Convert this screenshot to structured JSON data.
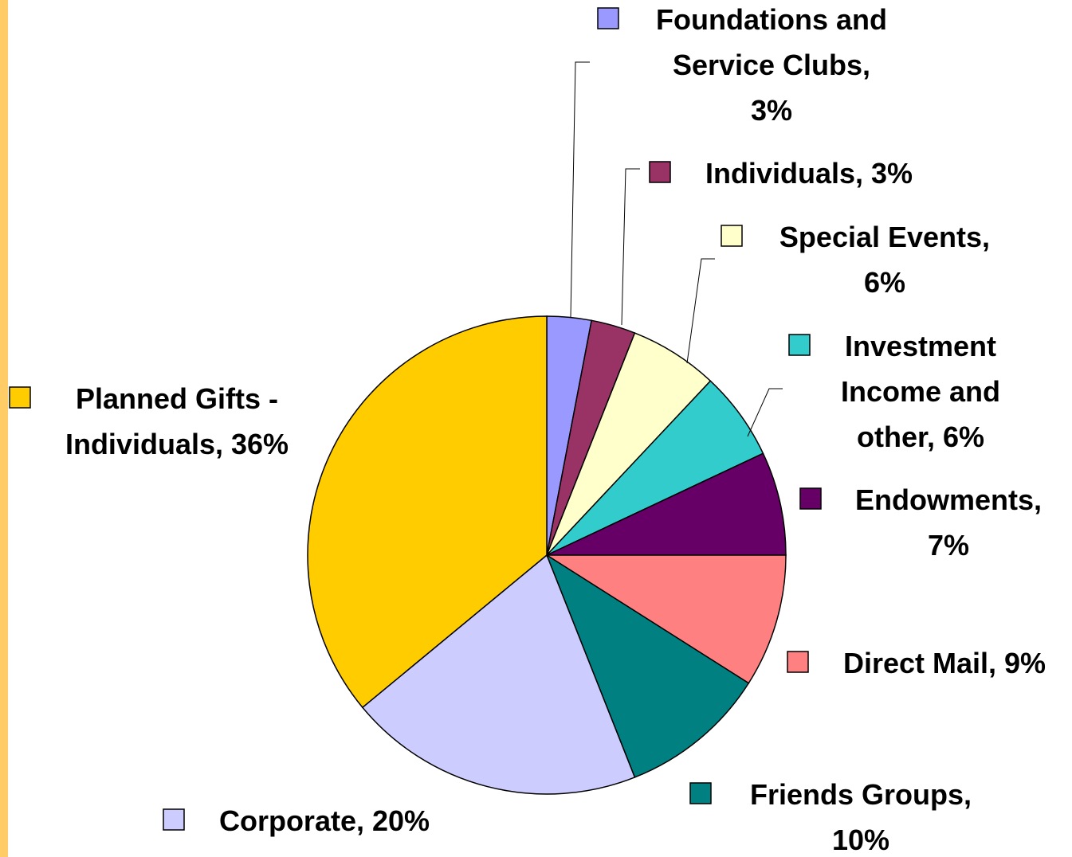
{
  "chart_data": {
    "type": "pie",
    "categories": [
      "Foundations and Service Clubs",
      "Individuals",
      "Special Events",
      "Investment Income and other",
      "Endowments",
      "Direct Mail",
      "Friends Groups",
      "Corporate",
      "Planned Gifts - Individuals"
    ],
    "values": [
      3,
      3,
      6,
      6,
      7,
      9,
      10,
      20,
      36
    ],
    "value_labels": [
      "Foundations and Service Clubs, 3%",
      "Individuals, 3%",
      "Special Events, 6%",
      "Investment Income and other, 6%",
      "Endowments, 7%",
      "Direct Mail, 9%",
      "Friends Groups, 10%",
      "Corporate, 20%",
      "Planned Gifts - Individuals, 36%"
    ],
    "colors": [
      "#9999ff",
      "#993366",
      "#ffffcc",
      "#33cccc",
      "#660066",
      "#ff8080",
      "#008080",
      "#ccccff",
      "#ffcc00"
    ]
  }
}
